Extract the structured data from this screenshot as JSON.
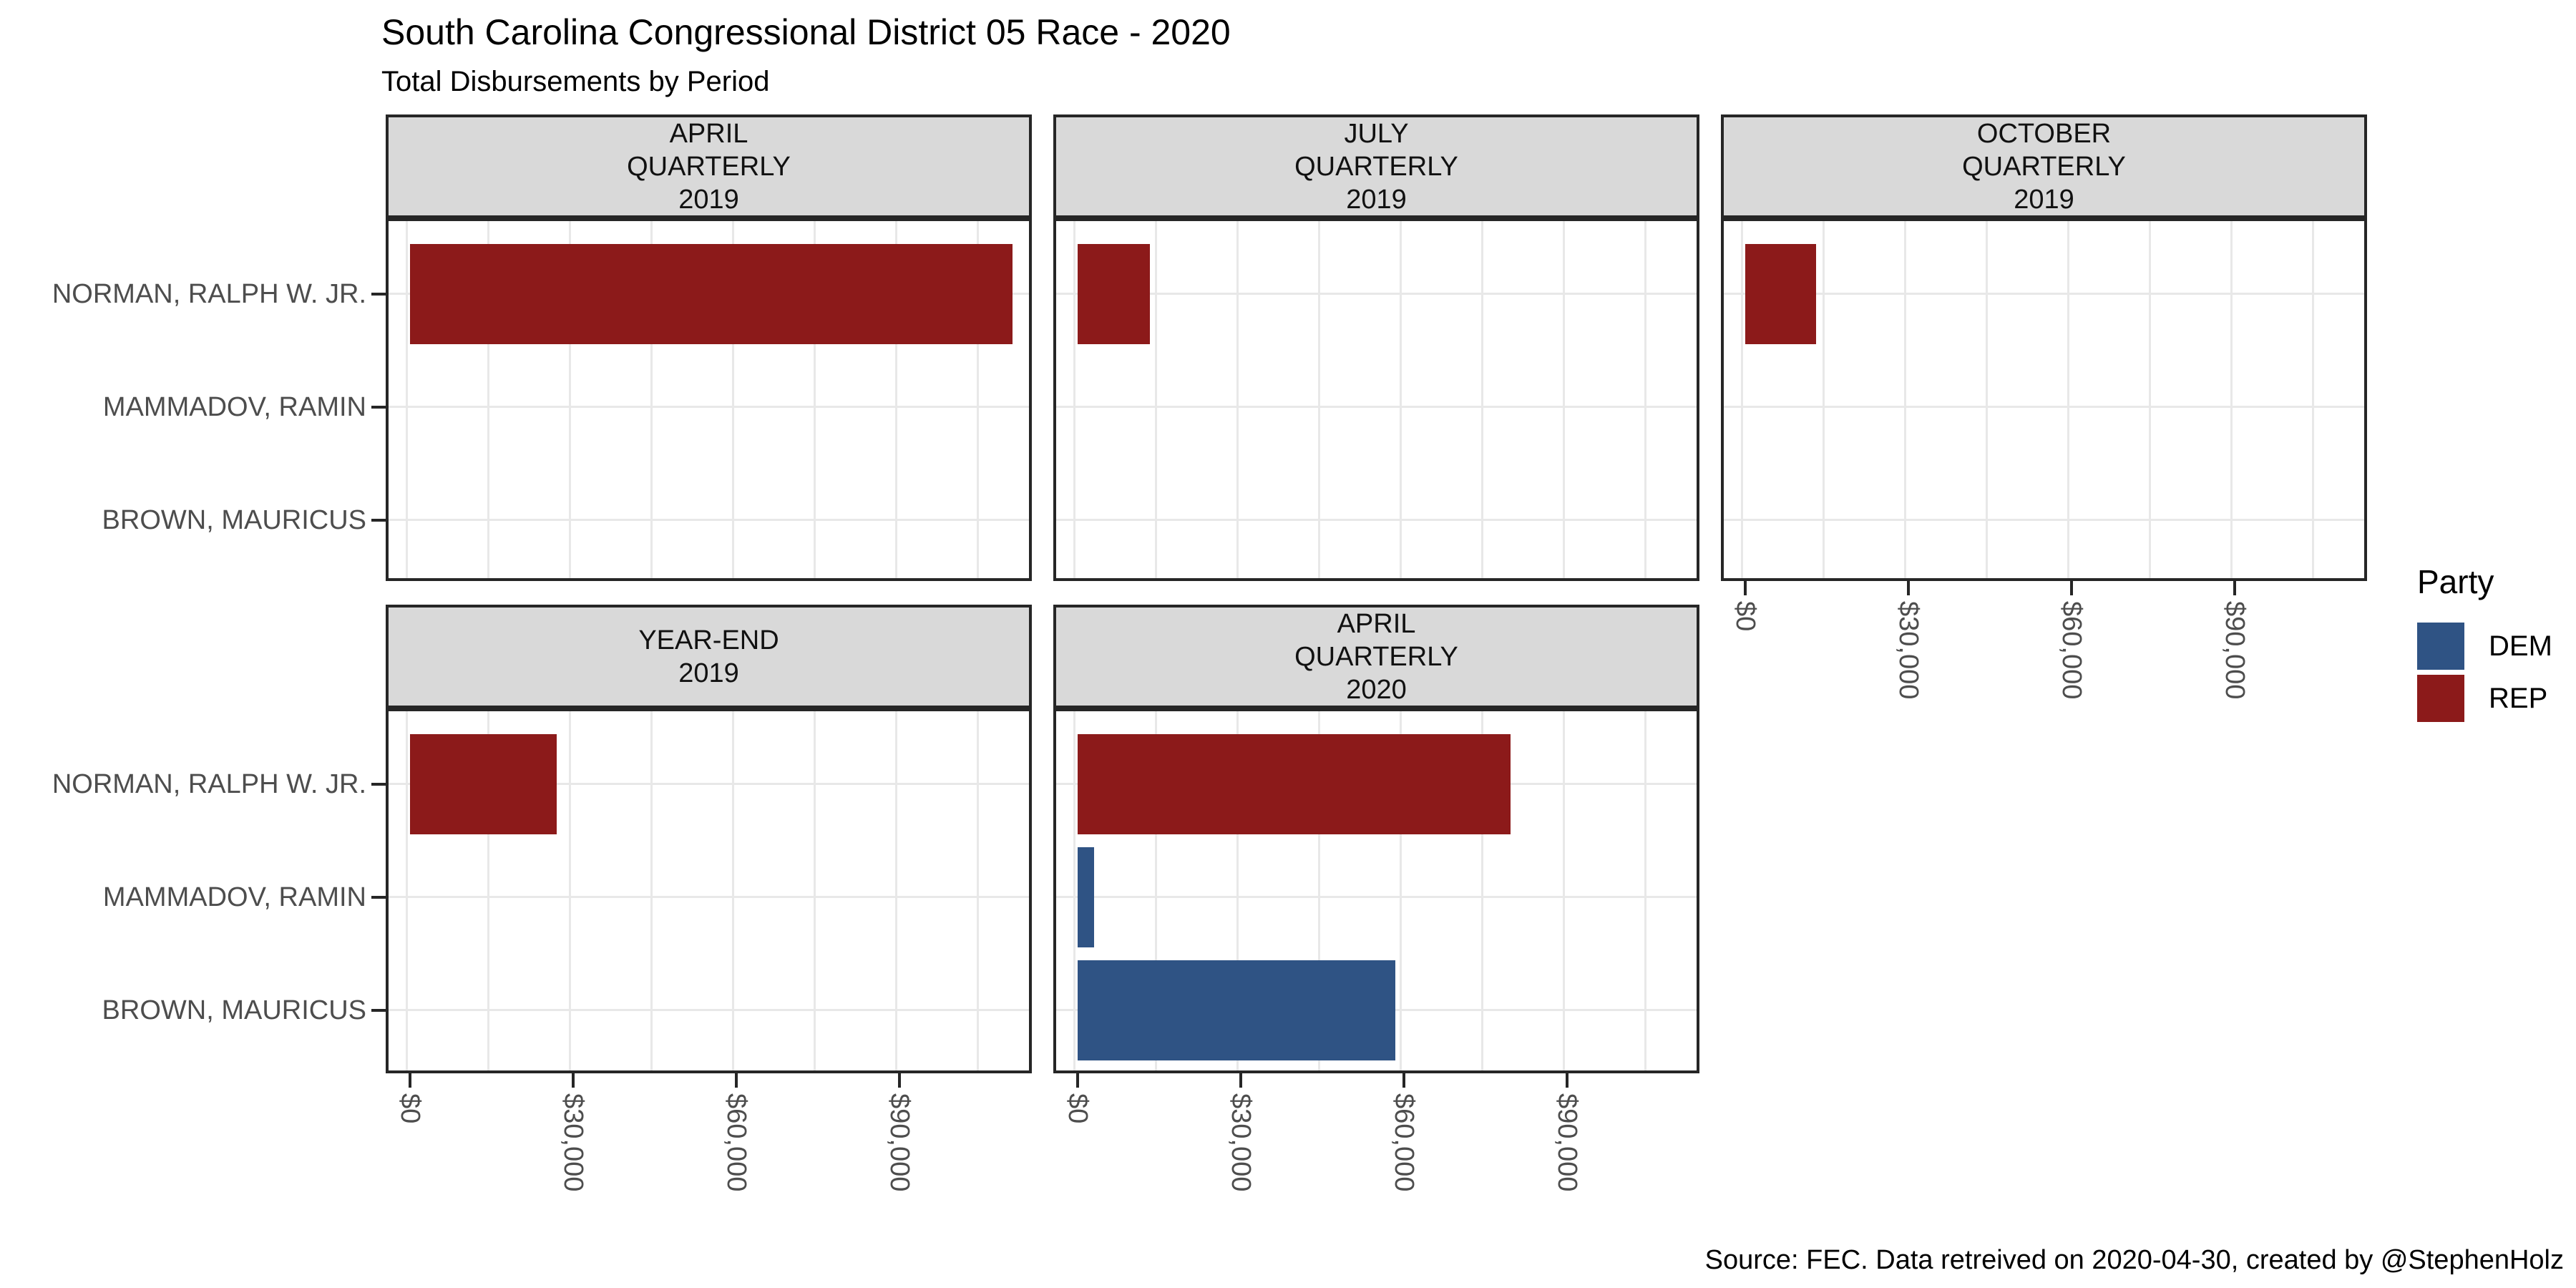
{
  "title": "South Carolina Congressional District 05 Race - 2020",
  "subtitle": "Total Disbursements by Period",
  "caption": "Source: FEC. Data retreived on 2020-04-30, created by @StephenHolz",
  "legend": {
    "title": "Party",
    "entries": [
      {
        "label": "DEM",
        "color": "#2F5384"
      },
      {
        "label": "REP",
        "color": "#8C1A1A"
      }
    ]
  },
  "colors": {
    "dem": "#2F5384",
    "rep": "#8C1A1A",
    "strip_fill": "#D9D9D9",
    "panel_border": "#262626",
    "grid": "#E8E8E8",
    "axis_text": "#4D4D4D",
    "text": "#000000"
  },
  "chart_data": {
    "type": "bar",
    "orientation": "horizontal",
    "facet_by": "Period",
    "grid": "on",
    "legend_position": "right",
    "y_axis": {
      "categories": [
        "NORMAN, RALPH W. JR.",
        "MAMMADOV, RAMIN",
        "BROWN, MAURICUS"
      ]
    },
    "x_axis": {
      "tick_labels": [
        "$0",
        "$30,000",
        "$60,000",
        "$90,000"
      ],
      "tick_values": [
        0,
        30000,
        60000,
        90000
      ],
      "xlim": [
        0,
        114000
      ],
      "minor_grid_step": 15000
    },
    "facets": [
      {
        "period": "APRIL QUARTERLY 2019",
        "strip_lines": [
          "APRIL",
          "QUARTERLY",
          "2019"
        ],
        "row": 0,
        "col": 0,
        "bars": [
          {
            "candidate": "NORMAN, RALPH W. JR.",
            "party": "REP",
            "value": 110800
          }
        ]
      },
      {
        "period": "JULY QUARTERLY 2019",
        "strip_lines": [
          "JULY",
          "QUARTERLY",
          "2019"
        ],
        "row": 0,
        "col": 1,
        "bars": [
          {
            "candidate": "NORMAN, RALPH W. JR.",
            "party": "REP",
            "value": 13300
          }
        ]
      },
      {
        "period": "OCTOBER QUARTERLY 2019",
        "strip_lines": [
          "OCTOBER",
          "QUARTERLY",
          "2019"
        ],
        "row": 0,
        "col": 2,
        "bars": [
          {
            "candidate": "NORMAN, RALPH W. JR.",
            "party": "REP",
            "value": 13000
          }
        ]
      },
      {
        "period": "YEAR-END 2019",
        "strip_lines": [
          "YEAR-END",
          "2019"
        ],
        "row": 1,
        "col": 0,
        "bars": [
          {
            "candidate": "NORMAN, RALPH W. JR.",
            "party": "REP",
            "value": 27000
          }
        ]
      },
      {
        "period": "APRIL QUARTERLY 2020",
        "strip_lines": [
          "APRIL",
          "QUARTERLY",
          "2020"
        ],
        "row": 1,
        "col": 1,
        "bars": [
          {
            "candidate": "NORMAN, RALPH W. JR.",
            "party": "REP",
            "value": 79600
          },
          {
            "candidate": "MAMMADOV, RAMIN",
            "party": "DEM",
            "value": 3000
          },
          {
            "candidate": "BROWN, MAURICUS",
            "party": "DEM",
            "value": 58400
          }
        ]
      }
    ]
  }
}
